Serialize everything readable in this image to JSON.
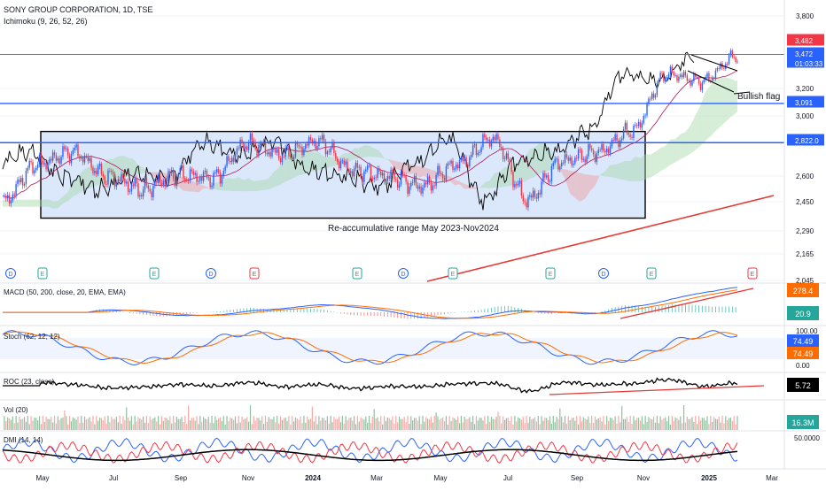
{
  "header": {
    "symbol": "SONY GROUP CORPORATION, 1D, TSE",
    "indicator": "Ichimoku (9, 26, 52, 26)"
  },
  "colors": {
    "bull": "#2962ff",
    "bear": "#f23645",
    "price_line": "#000000",
    "cloud_bull": "#a5d6a7",
    "cloud_bear": "#ef9a9a",
    "box_fill": "#dbe7fb",
    "hline_blue": "#2962ff",
    "hline_red": "#f23645",
    "trend_red": "#e53935",
    "macd_line": "#2962ff",
    "signal_line": "#ff6d00",
    "stoch_k": "#2962ff",
    "stoch_d": "#ff6d00",
    "vol_up": "#8fbf9f",
    "vol_down": "#f7a9a9",
    "dmi_plus": "#2962ff",
    "dmi_minus": "#f23645",
    "adx": "#000000",
    "axis_text": "#131722",
    "grid": "#f0f3fa"
  },
  "price_axis": {
    "ticks": [
      "3,800",
      "3,200",
      "3,000",
      "2,600",
      "2,450",
      "2,290",
      "2,165",
      "2,045"
    ],
    "badges": [
      {
        "text": "3,482",
        "kind": "red"
      },
      {
        "text": "3,472",
        "kind": "blue"
      },
      {
        "text": "01:03:33",
        "kind": "blue-sub"
      },
      {
        "text": "3,091",
        "kind": "blue"
      },
      {
        "text": "2,822.0",
        "kind": "blue"
      }
    ]
  },
  "annotations": {
    "range_label": "Re-accumulative range May 2023-Nov2024",
    "flag_label": "Bullish flag"
  },
  "event_markers": [
    "D",
    "E",
    "E",
    "D",
    "E",
    "E",
    "D",
    "E",
    "E",
    "D",
    "E",
    "E"
  ],
  "macd": {
    "label": "MACD (50, 200, close, 20, EMA, EMA)",
    "value": "278.4",
    "hist_value": "20.9"
  },
  "stoch": {
    "label": "Stoch (62, 12, 12)",
    "ticks": [
      "100.00",
      "0.00"
    ],
    "k_value": "74.49",
    "d_value": "74.49"
  },
  "roc": {
    "label": "ROC (23, close)",
    "value": "5.72"
  },
  "vol": {
    "label": "Vol (20)",
    "value": "16.3M"
  },
  "dmi": {
    "label": "DMI (14, 14)",
    "tick": "50.0000"
  },
  "time_axis": [
    "May",
    "Jul",
    "Sep",
    "Nov",
    "2024",
    "Mar",
    "May",
    "Jul",
    "Sep",
    "Nov",
    "2025",
    "Mar"
  ],
  "chart_data": {
    "type": "line",
    "title": "SONY GROUP CORPORATION, 1D, TSE",
    "xlabel": "",
    "ylabel": "",
    "x": [
      "2023-05",
      "2023-06",
      "2023-07",
      "2023-08",
      "2023-09",
      "2023-10",
      "2023-11",
      "2023-12",
      "2024-01",
      "2024-02",
      "2024-03",
      "2024-04",
      "2024-05",
      "2024-06",
      "2024-07",
      "2024-08",
      "2024-09",
      "2024-10",
      "2024-11",
      "2024-12",
      "2025-01",
      "2025-02"
    ],
    "series": [
      {
        "name": "",
        "values": [
          2450,
          2680,
          2760,
          2600,
          2520,
          2610,
          2590,
          2820,
          2740,
          2830,
          2640,
          2600,
          2540,
          2680,
          2850,
          2460,
          2700,
          2760,
          2900,
          3320,
          3260,
          3472
        ]
      }
    ],
    "horizontal_levels": [
      3482,
      3091,
      2822
    ],
    "range_box": {
      "x_start": "2023-05",
      "x_end": "2024-11",
      "y_low": 2360,
      "y_high": 2920
    },
    "ylim": [
      2045,
      3800
    ]
  }
}
